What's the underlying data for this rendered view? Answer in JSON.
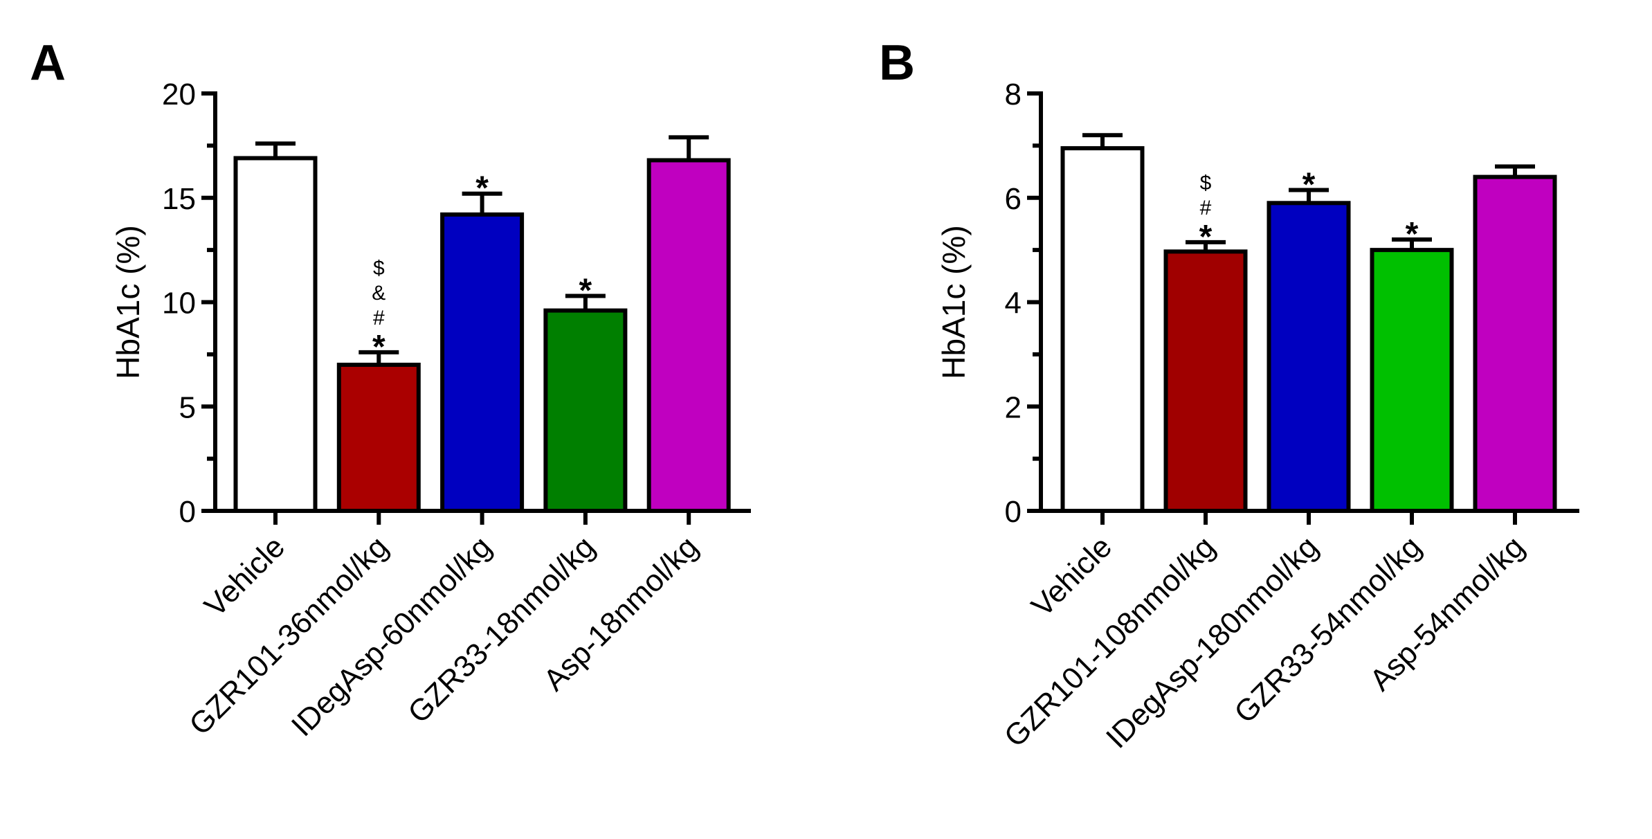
{
  "chart_data": [
    {
      "panel": "A",
      "type": "bar",
      "title": "",
      "xlabel": "",
      "ylabel": "HbA1c (%)",
      "ylim": [
        0,
        20
      ],
      "yticks": [
        0,
        5,
        10,
        15,
        20
      ],
      "grid": false,
      "categories": [
        "Vehicle",
        "GZR101-36nmol/kg",
        "IDegAsp-60nmol/kg",
        "GZR33-18nmol/kg",
        "Asp-18nmol/kg"
      ],
      "values": [
        16.9,
        7.0,
        14.2,
        9.6,
        16.8
      ],
      "error_upper": [
        17.6,
        7.6,
        15.2,
        10.3,
        17.9
      ],
      "colors": [
        "#ffffff",
        "#aa0000",
        "#0000c0",
        "#007f00",
        "#c000c0"
      ],
      "annotations": [
        [],
        [
          "*",
          "#",
          "&",
          "$"
        ],
        [
          "*"
        ],
        [
          "*"
        ],
        []
      ]
    },
    {
      "panel": "B",
      "type": "bar",
      "title": "",
      "xlabel": "",
      "ylabel": "HbA1c (%)",
      "ylim": [
        0,
        8
      ],
      "yticks": [
        0,
        2,
        4,
        6,
        8
      ],
      "grid": false,
      "categories": [
        "Vehicle",
        "GZR101-108nmol/kg",
        "IDegAsp-180nmol/kg",
        "GZR33-54nmol/kg",
        "Asp-54nmol/kg"
      ],
      "values": [
        6.95,
        4.97,
        5.9,
        5.0,
        6.4
      ],
      "error_upper": [
        7.2,
        5.15,
        6.15,
        5.2,
        6.6
      ],
      "colors": [
        "#ffffff",
        "#a00000",
        "#0000c0",
        "#00c000",
        "#c000c0"
      ],
      "annotations": [
        [],
        [
          "*",
          "#",
          "$"
        ],
        [
          "*"
        ],
        [
          "*"
        ],
        []
      ]
    }
  ]
}
